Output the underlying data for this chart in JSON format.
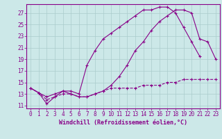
{
  "xlabel": "Windchill (Refroidissement éolien,°C)",
  "bg_color": "#cce8e8",
  "line_color": "#880088",
  "grid_color": "#aacccc",
  "xlim": [
    -0.5,
    23.5
  ],
  "ylim": [
    10.5,
    28.5
  ],
  "xticks": [
    0,
    1,
    2,
    3,
    4,
    5,
    6,
    7,
    8,
    9,
    10,
    11,
    12,
    13,
    14,
    15,
    16,
    17,
    18,
    19,
    20,
    21,
    22,
    23
  ],
  "yticks": [
    11,
    13,
    15,
    17,
    19,
    21,
    23,
    25,
    27
  ],
  "line1_x": [
    0,
    1,
    2,
    3,
    4,
    5,
    6,
    7,
    8,
    9,
    10,
    11,
    12,
    13,
    14,
    15,
    16,
    17,
    18,
    19,
    20,
    21,
    22,
    23
  ],
  "line1_y": [
    14.0,
    13.2,
    11.3,
    12.5,
    13.5,
    13.0,
    12.5,
    12.5,
    13.0,
    13.5,
    14.5,
    16.0,
    18.0,
    20.5,
    22.0,
    24.0,
    25.5,
    26.5,
    27.5,
    27.5,
    27.0,
    22.5,
    22.0,
    19.0
  ],
  "line2_x": [
    0,
    1,
    2,
    3,
    4,
    5,
    6,
    7,
    8,
    9,
    10,
    11,
    12,
    13,
    14,
    15,
    16,
    17,
    18,
    19,
    20,
    21,
    22,
    23
  ],
  "line2_y": [
    14.0,
    13.2,
    12.5,
    13.0,
    13.5,
    13.5,
    13.0,
    18.0,
    20.5,
    22.5,
    23.5,
    24.5,
    25.5,
    26.5,
    27.5,
    27.5,
    28.0,
    28.0,
    27.0,
    24.5,
    22.0,
    19.5,
    null,
    null
  ],
  "line3_x": [
    0,
    1,
    2,
    3,
    4,
    5,
    6,
    7,
    8,
    9,
    10,
    11,
    12,
    13,
    14,
    15,
    16,
    17,
    18,
    19,
    20,
    21,
    22,
    23
  ],
  "line3_y": [
    14.0,
    13.2,
    12.0,
    12.5,
    13.0,
    13.0,
    12.5,
    12.5,
    13.0,
    13.5,
    14.0,
    14.0,
    14.0,
    14.0,
    14.5,
    14.5,
    14.5,
    15.0,
    15.0,
    15.5,
    15.5,
    15.5,
    15.5,
    15.5
  ],
  "font_size_label": 6,
  "font_size_tick": 5.5
}
